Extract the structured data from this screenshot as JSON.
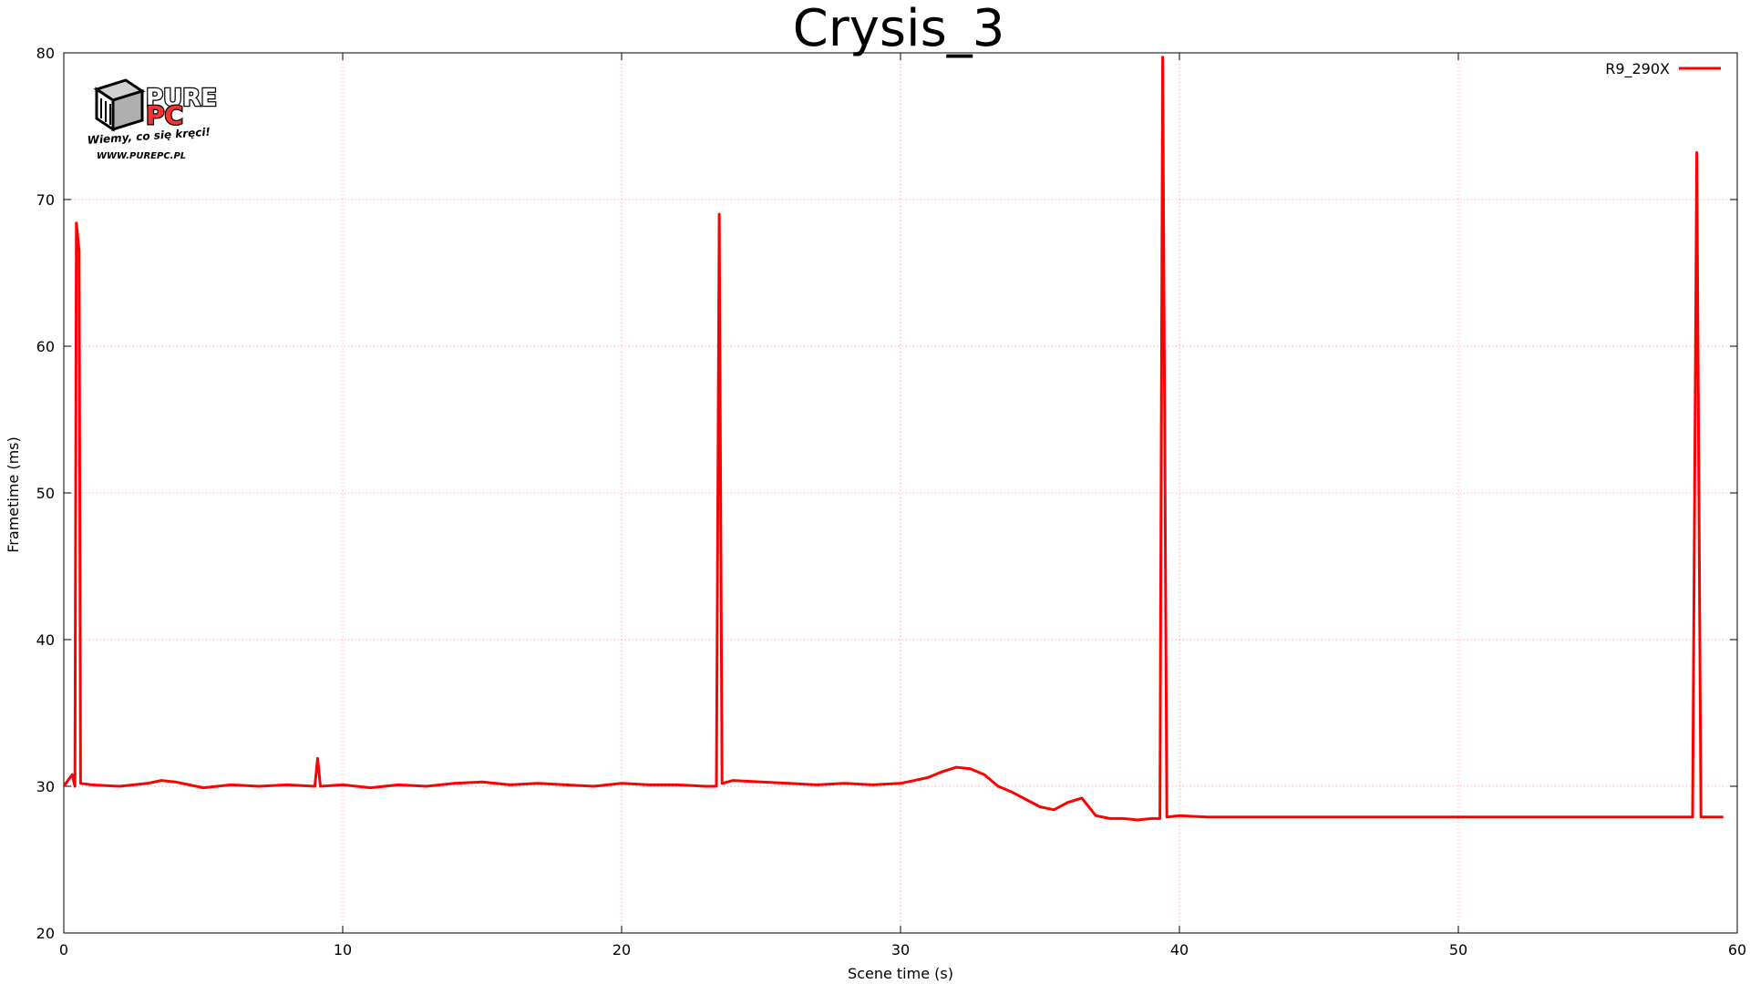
{
  "chart_data": {
    "type": "line",
    "title": "Crysis_3",
    "xlabel": "Scene time (s)",
    "ylabel": "Frametime (ms)",
    "xlim": [
      0,
      60
    ],
    "ylim": [
      20,
      80
    ],
    "x_ticks": [
      0,
      10,
      20,
      30,
      40,
      50,
      60
    ],
    "y_ticks": [
      20,
      30,
      40,
      50,
      60,
      70,
      80
    ],
    "grid": true,
    "legend_position": "top-right",
    "series": [
      {
        "name": "R9_290X",
        "color": "#ff0000",
        "points": [
          [
            0.0,
            30.0
          ],
          [
            0.3,
            30.8
          ],
          [
            0.4,
            30.0
          ],
          [
            0.45,
            68.4
          ],
          [
            0.55,
            66.5
          ],
          [
            0.6,
            30.2
          ],
          [
            1.0,
            30.1
          ],
          [
            2.0,
            30.0
          ],
          [
            3.0,
            30.2
          ],
          [
            3.5,
            30.4
          ],
          [
            4.0,
            30.3
          ],
          [
            5.0,
            29.9
          ],
          [
            6.0,
            30.1
          ],
          [
            7.0,
            30.0
          ],
          [
            8.0,
            30.1
          ],
          [
            9.0,
            30.0
          ],
          [
            9.1,
            31.9
          ],
          [
            9.2,
            30.0
          ],
          [
            10.0,
            30.1
          ],
          [
            11.0,
            29.9
          ],
          [
            12.0,
            30.1
          ],
          [
            13.0,
            30.0
          ],
          [
            14.0,
            30.2
          ],
          [
            15.0,
            30.3
          ],
          [
            16.0,
            30.1
          ],
          [
            17.0,
            30.2
          ],
          [
            18.0,
            30.1
          ],
          [
            19.0,
            30.0
          ],
          [
            20.0,
            30.2
          ],
          [
            21.0,
            30.1
          ],
          [
            22.0,
            30.1
          ],
          [
            23.0,
            30.0
          ],
          [
            23.4,
            30.0
          ],
          [
            23.5,
            69.0
          ],
          [
            23.6,
            30.2
          ],
          [
            24.0,
            30.4
          ],
          [
            25.0,
            30.3
          ],
          [
            26.0,
            30.2
          ],
          [
            27.0,
            30.1
          ],
          [
            28.0,
            30.2
          ],
          [
            29.0,
            30.1
          ],
          [
            30.0,
            30.2
          ],
          [
            31.0,
            30.6
          ],
          [
            31.5,
            31.0
          ],
          [
            32.0,
            31.3
          ],
          [
            32.5,
            31.2
          ],
          [
            33.0,
            30.8
          ],
          [
            33.5,
            30.0
          ],
          [
            34.0,
            29.6
          ],
          [
            34.5,
            29.1
          ],
          [
            35.0,
            28.6
          ],
          [
            35.5,
            28.4
          ],
          [
            36.0,
            28.9
          ],
          [
            36.5,
            29.2
          ],
          [
            37.0,
            28.0
          ],
          [
            37.5,
            27.8
          ],
          [
            38.0,
            27.8
          ],
          [
            38.5,
            27.7
          ],
          [
            39.0,
            27.8
          ],
          [
            39.3,
            27.8
          ],
          [
            39.4,
            79.7
          ],
          [
            39.55,
            27.9
          ],
          [
            40.0,
            28.0
          ],
          [
            41.0,
            27.9
          ],
          [
            42.0,
            27.9
          ],
          [
            43.0,
            27.9
          ],
          [
            44.0,
            27.9
          ],
          [
            45.0,
            27.9
          ],
          [
            46.0,
            27.9
          ],
          [
            47.0,
            27.9
          ],
          [
            48.0,
            27.9
          ],
          [
            49.0,
            27.9
          ],
          [
            50.0,
            27.9
          ],
          [
            51.0,
            27.9
          ],
          [
            52.0,
            27.9
          ],
          [
            53.0,
            27.9
          ],
          [
            54.0,
            27.9
          ],
          [
            55.0,
            27.9
          ],
          [
            56.0,
            27.9
          ],
          [
            57.0,
            27.9
          ],
          [
            58.0,
            27.9
          ],
          [
            58.4,
            27.9
          ],
          [
            58.55,
            73.2
          ],
          [
            58.7,
            27.9
          ],
          [
            59.0,
            27.9
          ],
          [
            59.5,
            27.9
          ]
        ]
      }
    ]
  },
  "logo": {
    "brand_top": "PURE",
    "brand_bottom": "PC",
    "tagline": "Wiemy, co się kręci!",
    "url": "WWW.PUREPC.PL"
  }
}
